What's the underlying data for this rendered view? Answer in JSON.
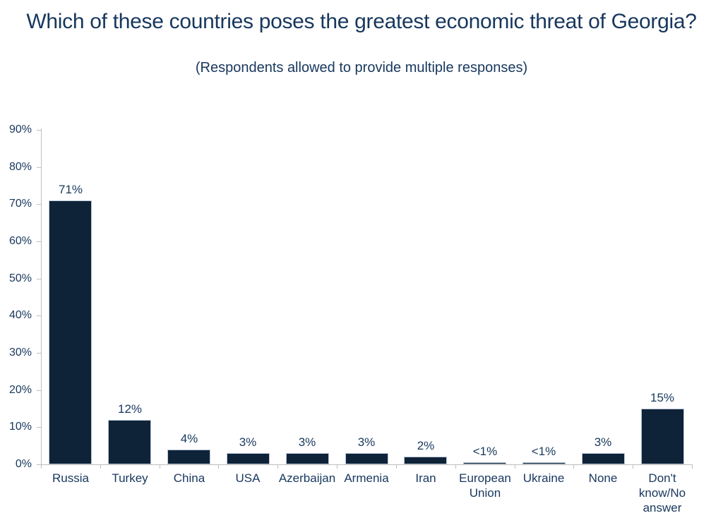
{
  "chart_data": {
    "type": "bar",
    "title": "Which of these countries poses the greatest economic threat of Georgia?",
    "subtitle": "(Respondents allowed to provide multiple responses)",
    "categories": [
      "Russia",
      "Turkey",
      "China",
      "USA",
      "Azerbaijan",
      "Armenia",
      "Iran",
      "European\nUnion",
      "Ukraine",
      "None",
      "Don't\nknow/No\nanswer"
    ],
    "values": [
      71,
      12,
      4,
      3,
      3,
      3,
      2,
      0.5,
      0.5,
      3,
      15
    ],
    "value_labels": [
      "71%",
      "12%",
      "4%",
      "3%",
      "3%",
      "3%",
      "2%",
      "<1%",
      "<1%",
      "3%",
      "15%"
    ],
    "xlabel": "",
    "ylabel": "",
    "ylim": [
      0,
      90
    ],
    "ytick_step": 10,
    "ytick_labels": [
      "0%",
      "10%",
      "20%",
      "30%",
      "40%",
      "50%",
      "60%",
      "70%",
      "80%",
      "90%"
    ],
    "grid": false,
    "legend": null,
    "colors": {
      "bar_fill": "#0E2338",
      "bar_border": "#BCC7D6",
      "text": "#17375D",
      "axis": "#BFBFBF",
      "background": "#FFFFFF"
    }
  }
}
